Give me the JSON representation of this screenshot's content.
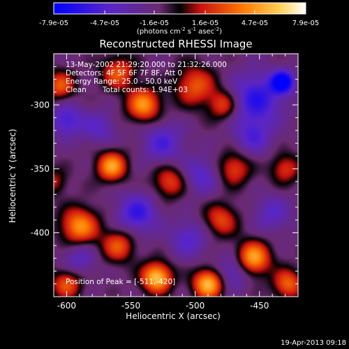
{
  "chart_data": {
    "type": "heatmap",
    "title": "Reconstructed RHESSI Image",
    "xlabel": "Heliocentric X (arcsec)",
    "ylabel": "Heliocentric Y (arcsec)",
    "xlim": [
      -610,
      -420
    ],
    "ylim": [
      -450,
      -260
    ],
    "x_ticks": [
      "-600",
      "-550",
      "-500",
      "-450"
    ],
    "x_tick_values": [
      -600,
      -550,
      -500,
      -450
    ],
    "y_ticks": [
      "-300",
      "-350",
      "-400"
    ],
    "y_tick_values": [
      -300,
      -350,
      -400
    ],
    "colorbar": {
      "tick_labels": [
        "-7.9e-05",
        "-4.7e-05",
        "-1.6e-05",
        "1.6e-05",
        "4.7e-05",
        "7.9e-05"
      ],
      "tick_values": [
        -7.9e-05,
        -4.7e-05,
        -1.6e-05,
        1.6e-05,
        4.7e-05,
        7.9e-05
      ],
      "range": [
        -7.9e-05,
        7.9e-05
      ],
      "units_prefix": "(photons cm",
      "units_exp1": "-2",
      "units_mid": " s",
      "units_exp2": "-1",
      "units_mid2": " asec",
      "units_exp3": "-2",
      "units_suffix": ")"
    },
    "annotations": {
      "time_range": "13-May-2002 21:29:20.000 to 21:32:26.000",
      "detectors": "Detectors: 4F 5F 6F 7F 8F, Att 0",
      "energy": "Energy Range: 25.0 - 50.0 keV",
      "method": "Clean",
      "counts": "Total counts: 1.94E+03",
      "peak": "Position of Peak = [-511,-420]"
    },
    "peak_position": [
      -511,
      -420
    ],
    "blobs": [
      {
        "x": -432,
        "y": -282,
        "v": -0.95,
        "s": 6
      },
      {
        "x": -452,
        "y": -295,
        "v": -0.6,
        "s": 14
      },
      {
        "x": -600,
        "y": -312,
        "v": -0.5,
        "s": 9
      },
      {
        "x": -575,
        "y": -318,
        "v": -0.35,
        "s": 9
      },
      {
        "x": -525,
        "y": -330,
        "v": -0.45,
        "s": 11
      },
      {
        "x": -495,
        "y": -355,
        "v": -0.4,
        "s": 10
      },
      {
        "x": -455,
        "y": -325,
        "v": -0.4,
        "s": 10
      },
      {
        "x": -545,
        "y": -385,
        "v": -0.55,
        "s": 11
      },
      {
        "x": -505,
        "y": -405,
        "v": -0.4,
        "s": 10
      },
      {
        "x": -590,
        "y": -420,
        "v": -0.35,
        "s": 9
      },
      {
        "x": -440,
        "y": -385,
        "v": -0.35,
        "s": 10
      },
      {
        "x": -470,
        "y": -430,
        "v": -0.4,
        "s": 9
      },
      {
        "x": -610,
        "y": -360,
        "v": 0.35,
        "s": 7
      },
      {
        "x": -565,
        "y": -348,
        "v": 0.8,
        "s": 8
      },
      {
        "x": -540,
        "y": -300,
        "v": 0.75,
        "s": 9
      },
      {
        "x": -500,
        "y": -285,
        "v": 0.55,
        "s": 11
      },
      {
        "x": -478,
        "y": -300,
        "v": 0.5,
        "s": 8
      },
      {
        "x": -560,
        "y": -275,
        "v": 0.55,
        "s": 9
      },
      {
        "x": -605,
        "y": -285,
        "v": 0.55,
        "s": 8
      },
      {
        "x": -470,
        "y": -350,
        "v": 0.5,
        "s": 9
      },
      {
        "x": -520,
        "y": -360,
        "v": 0.5,
        "s": 9
      },
      {
        "x": -590,
        "y": -395,
        "v": 0.75,
        "s": 10
      },
      {
        "x": -560,
        "y": -410,
        "v": 0.55,
        "s": 9
      },
      {
        "x": -480,
        "y": -390,
        "v": 0.5,
        "s": 9
      },
      {
        "x": -430,
        "y": -350,
        "v": 0.45,
        "s": 8
      },
      {
        "x": -530,
        "y": -435,
        "v": 0.95,
        "s": 8
      },
      {
        "x": -490,
        "y": -440,
        "v": 0.9,
        "s": 8
      },
      {
        "x": -455,
        "y": -420,
        "v": 0.85,
        "s": 9
      },
      {
        "x": -600,
        "y": -440,
        "v": 0.55,
        "s": 8
      },
      {
        "x": -428,
        "y": -440,
        "v": 0.6,
        "s": 8
      }
    ]
  },
  "footer": {
    "timestamp": "19-Apr-2013 09:18"
  }
}
